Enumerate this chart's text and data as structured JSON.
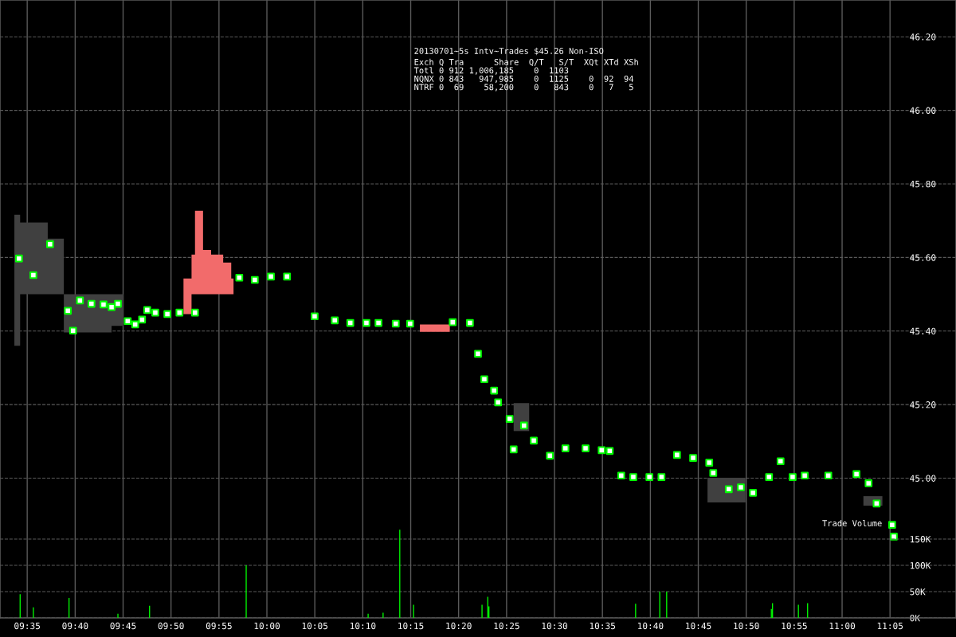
{
  "chart_data": {
    "type": "scatter",
    "title": "20130701~5s Intv~Trades $45.26 Non-ISO",
    "annotations": [
      "Exch Q Tra      Share  Q/T   S/T  XQt XTd XSh",
      "Totl 0 912 1,006,185    0  1103",
      "NQNX 0 843   947,985    0  1125    0  92  94",
      "NTRF 0  69    58,200    0   843    0   7   5",
      "Trade Volume"
    ],
    "xlim": [
      9.536,
      11.198
    ],
    "xticks": [
      {
        "value": 9.5833,
        "label": "09:35"
      },
      {
        "value": 9.6667,
        "label": "09:40"
      },
      {
        "value": 9.75,
        "label": "09:45"
      },
      {
        "value": 9.8333,
        "label": "09:50"
      },
      {
        "value": 9.9167,
        "label": "09:55"
      },
      {
        "value": 10.0,
        "label": "10:00"
      },
      {
        "value": 10.0833,
        "label": "10:05"
      },
      {
        "value": 10.1667,
        "label": "10:10"
      },
      {
        "value": 10.25,
        "label": "10:15"
      },
      {
        "value": 10.3333,
        "label": "10:20"
      },
      {
        "value": 10.4167,
        "label": "10:25"
      },
      {
        "value": 10.5,
        "label": "10:30"
      },
      {
        "value": 10.5833,
        "label": "10:35"
      },
      {
        "value": 10.6667,
        "label": "10:40"
      },
      {
        "value": 10.75,
        "label": "10:45"
      },
      {
        "value": 10.8333,
        "label": "10:50"
      },
      {
        "value": 10.9167,
        "label": "10:55"
      },
      {
        "value": 11.0,
        "label": "11:00"
      },
      {
        "value": 11.0833,
        "label": "11:05"
      }
    ],
    "ylim": [
      44.62,
      46.3
    ],
    "yticks": [
      {
        "value": 45.0,
        "label": "45.00"
      },
      {
        "value": 45.2,
        "label": "45.20"
      },
      {
        "value": 45.4,
        "label": "45.40"
      },
      {
        "value": 45.6,
        "label": "45.60"
      },
      {
        "value": 45.8,
        "label": "45.80"
      },
      {
        "value": 46.0,
        "label": "46.00"
      },
      {
        "value": 46.2,
        "label": "46.20"
      }
    ],
    "y2lim": [
      0,
      1176000
    ],
    "y2ticks": [
      {
        "value": 0,
        "label": "0K"
      },
      {
        "value": 50000,
        "label": "50K"
      },
      {
        "value": 100000,
        "label": "100K"
      },
      {
        "value": 150000,
        "label": "150K"
      }
    ],
    "grid": true,
    "marker": "square",
    "series": [
      {
        "type": "area",
        "color": "#404040",
        "x": [
          9.561,
          9.571,
          9.619,
          9.647,
          9.73,
          9.751
        ],
        "lower": [
          45.36,
          45.5,
          45.5,
          45.396,
          45.414,
          45.414
        ],
        "upper": [
          45.716,
          45.695,
          45.651,
          45.5,
          45.5,
          45.47
        ],
        "values": [
          null,
          null,
          null,
          null,
          null,
          null
        ]
      },
      {
        "type": "area",
        "color": "#404040",
        "x": [
          10.429,
          10.456
        ],
        "lower": [
          45.128,
          45.128
        ],
        "upper": [
          45.204,
          45.204
        ],
        "values": [
          null,
          null
        ]
      },
      {
        "type": "area",
        "color": "#404040",
        "x": [
          10.766,
          10.832
        ],
        "lower": [
          44.934,
          44.934
        ],
        "upper": [
          45.001,
          45.001
        ],
        "values": [
          null,
          null
        ]
      },
      {
        "type": "area",
        "color": "#404040",
        "x": [
          11.037,
          11.07
        ],
        "lower": [
          44.925,
          44.925
        ],
        "upper": [
          44.951,
          44.951
        ],
        "values": [
          null,
          null
        ]
      },
      {
        "type": "area",
        "color": "#f26b6b",
        "x": [
          9.838,
          9.855,
          9.869,
          9.875,
          9.889,
          9.903,
          9.924,
          9.938,
          9.942
        ],
        "lower": [
          45.446,
          45.446,
          45.5,
          45.5,
          45.5,
          45.5,
          45.5,
          45.5,
          45.5
        ],
        "upper": [
          45.446,
          45.543,
          45.608,
          45.727,
          45.62,
          45.608,
          45.586,
          45.543,
          45.5
        ],
        "values": [
          null,
          null,
          null,
          null,
          null,
          null,
          null,
          null,
          null
        ]
      },
      {
        "type": "area",
        "color": "#f26b6b",
        "x": [
          10.266,
          10.318
        ],
        "lower": [
          45.398,
          45.398
        ],
        "upper": [
          45.418,
          45.418
        ],
        "values": [
          null,
          null
        ]
      },
      {
        "color": "#00ff00",
        "x": [
          9.569,
          9.594,
          9.623,
          9.654,
          9.663,
          9.675,
          9.695,
          9.716,
          9.73,
          9.741,
          9.758,
          9.771,
          9.783,
          9.792,
          9.806,
          9.827,
          9.848,
          9.875,
          9.952,
          9.979,
          10.007,
          10.035,
          10.083,
          10.118,
          10.145,
          10.173,
          10.194,
          10.224,
          10.249,
          10.323,
          10.353,
          10.367,
          10.378,
          10.395,
          10.402,
          10.422,
          10.429,
          10.447,
          10.464,
          10.492,
          10.519,
          10.554,
          10.582,
          10.596,
          10.616,
          10.637,
          10.665,
          10.686,
          10.713,
          10.741,
          10.769,
          10.776,
          10.803,
          10.824,
          10.845,
          10.873,
          10.893,
          10.914,
          10.935,
          10.976,
          11.025,
          11.046,
          11.06,
          11.087,
          11.09
        ],
        "values": [
          45.597,
          45.552,
          45.636,
          45.455,
          45.401,
          45.483,
          45.474,
          45.472,
          45.465,
          45.474,
          45.427,
          45.418,
          45.431,
          45.457,
          45.45,
          45.446,
          45.45,
          45.45,
          45.545,
          45.539,
          45.548,
          45.548,
          45.44,
          45.429,
          45.422,
          45.422,
          45.422,
          45.42,
          45.42,
          45.424,
          45.422,
          45.338,
          45.269,
          45.238,
          45.206,
          45.161,
          45.078,
          45.143,
          45.102,
          45.061,
          45.081,
          45.081,
          45.076,
          45.074,
          45.007,
          45.003,
          45.003,
          45.003,
          45.063,
          45.055,
          45.042,
          45.014,
          44.97,
          44.975,
          44.96,
          45.003,
          45.046,
          45.003,
          45.007,
          45.007,
          45.011,
          44.986,
          44.931,
          44.873,
          44.841
        ]
      },
      {
        "type": "bar",
        "axis": "y2",
        "color": "#00ff00",
        "x": [
          9.571,
          9.594,
          9.656,
          9.741,
          9.796,
          9.964,
          10.176,
          10.202,
          10.231,
          10.255,
          10.374,
          10.384,
          10.386,
          10.641,
          10.683,
          10.695,
          10.877,
          10.879,
          10.924,
          10.94
        ],
        "values": [
          45000,
          20000,
          38000,
          8000,
          23000,
          100000,
          8000,
          10000,
          168000,
          25000,
          25000,
          40000,
          22000,
          27000,
          50000,
          50000,
          17000,
          28000,
          25000,
          28000
        ]
      }
    ]
  }
}
